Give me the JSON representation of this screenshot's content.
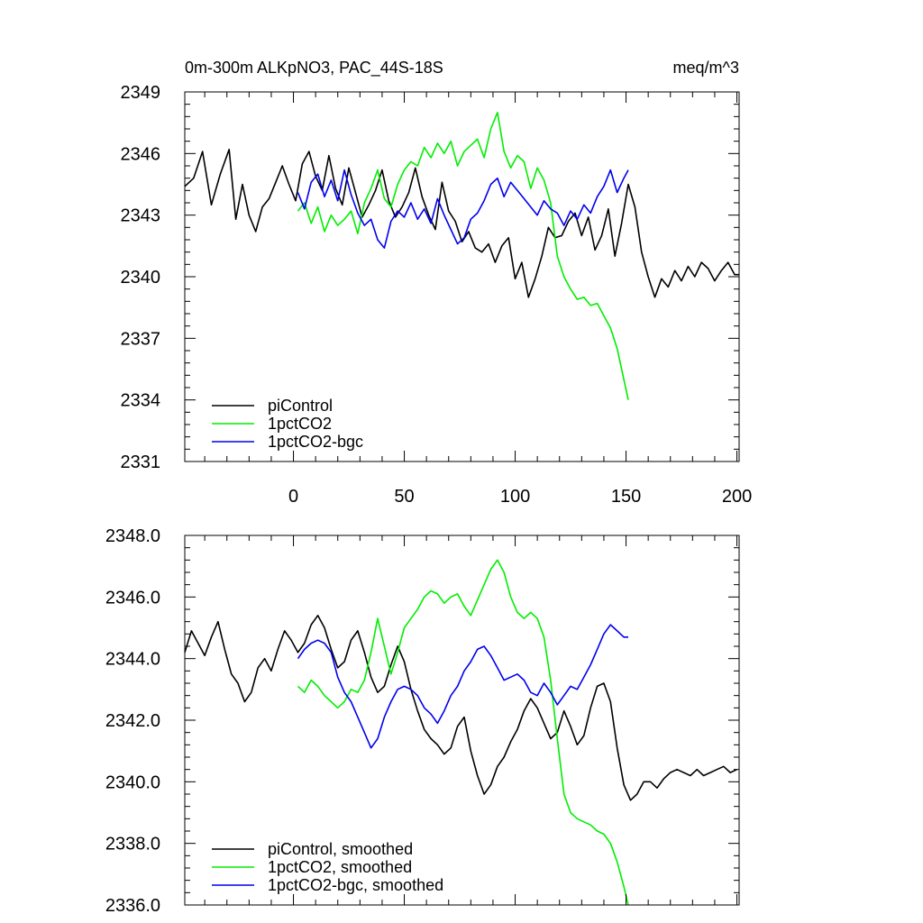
{
  "chart_data": [
    {
      "type": "line",
      "title_left": "0m-300m ALKpNO3, PAC_44S-18S",
      "title_right": "meq/m^3",
      "xlabel": "",
      "ylabel": "",
      "xlim": [
        -49,
        201
      ],
      "ylim": [
        2331,
        2349
      ],
      "x_ticks": [
        0,
        50,
        100,
        150,
        200
      ],
      "y_ticks": [
        2331,
        2334,
        2337,
        2340,
        2343,
        2346,
        2349
      ],
      "y_tick_labels": [
        "2331",
        "2334",
        "2337",
        "2340",
        "2343",
        "2346",
        "2349"
      ],
      "show_x_tick_labels": true,
      "legend_position": "bottom-left",
      "series": [
        {
          "name": "piControl",
          "color": "#000000",
          "x": [
            -49,
            -45,
            -41,
            -37,
            -33,
            -29,
            -26,
            -23,
            -20,
            -17,
            -14,
            -11,
            -8,
            -5,
            -2,
            1,
            4,
            7,
            10,
            13,
            16,
            19,
            22,
            25,
            28,
            31,
            34,
            37,
            40,
            43,
            46,
            49,
            52,
            55,
            58,
            61,
            64,
            67,
            70,
            73,
            76,
            79,
            82,
            85,
            88,
            91,
            94,
            97,
            100,
            103,
            106,
            109,
            112,
            115,
            118,
            121,
            124,
            127,
            130,
            133,
            136,
            139,
            142,
            145,
            148,
            151,
            154,
            157,
            160,
            163,
            166,
            169,
            172,
            175,
            178,
            181,
            184,
            187,
            190,
            193,
            196,
            199,
            201
          ],
          "y": [
            2344.4,
            2344.8,
            2346.1,
            2343.5,
            2345.0,
            2346.2,
            2342.8,
            2344.5,
            2343.0,
            2342.2,
            2343.4,
            2343.8,
            2344.6,
            2345.4,
            2344.5,
            2343.7,
            2345.5,
            2346.1,
            2344.9,
            2344.2,
            2345.9,
            2344.3,
            2343.5,
            2345.3,
            2344.1,
            2342.9,
            2343.5,
            2344.2,
            2345.2,
            2343.7,
            2342.9,
            2343.4,
            2344.1,
            2345.3,
            2343.9,
            2343.0,
            2342.3,
            2344.6,
            2343.2,
            2342.7,
            2341.7,
            2342.2,
            2341.4,
            2341.2,
            2341.6,
            2340.7,
            2341.5,
            2341.9,
            2339.9,
            2340.7,
            2339.0,
            2339.9,
            2341.0,
            2342.4,
            2341.9,
            2342.0,
            2342.7,
            2343.1,
            2342.0,
            2342.9,
            2341.3,
            2342.0,
            2343.3,
            2341.0,
            2342.6,
            2344.5,
            2343.4,
            2341.2,
            2340.0,
            2339.0,
            2339.9,
            2339.5,
            2340.3,
            2339.8,
            2340.5,
            2340.0,
            2340.7,
            2340.4,
            2339.8,
            2340.3,
            2340.7,
            2340.1,
            2340.1
          ]
        },
        {
          "name": "1pctCO2",
          "color": "#00ee00",
          "x": [
            2,
            5,
            8,
            11,
            14,
            17,
            20,
            23,
            26,
            29,
            32,
            35,
            38,
            41,
            44,
            47,
            50,
            53,
            56,
            59,
            62,
            65,
            68,
            71,
            74,
            77,
            80,
            83,
            86,
            89,
            92,
            95,
            98,
            101,
            104,
            107,
            110,
            113,
            116,
            119,
            122,
            125,
            128,
            131,
            134,
            137,
            140,
            143,
            146,
            149,
            151
          ],
          "y": [
            2343.2,
            2343.6,
            2342.6,
            2343.4,
            2342.2,
            2343.0,
            2342.5,
            2342.8,
            2343.2,
            2342.1,
            2343.6,
            2344.3,
            2345.2,
            2343.8,
            2343.4,
            2344.5,
            2345.2,
            2345.6,
            2345.4,
            2346.3,
            2345.8,
            2346.5,
            2346.0,
            2346.6,
            2345.4,
            2346.1,
            2346.4,
            2346.7,
            2345.8,
            2347.2,
            2348.0,
            2346.1,
            2345.3,
            2345.9,
            2345.6,
            2344.3,
            2345.3,
            2344.7,
            2343.6,
            2341.0,
            2340.0,
            2339.4,
            2338.9,
            2339.0,
            2338.6,
            2338.7,
            2338.1,
            2337.5,
            2336.5,
            2335.0,
            2334.0
          ]
        },
        {
          "name": "1pctCO2-bgc",
          "color": "#0000ee",
          "x": [
            2,
            5,
            8,
            11,
            14,
            17,
            20,
            23,
            26,
            29,
            32,
            35,
            38,
            41,
            44,
            47,
            50,
            53,
            56,
            59,
            62,
            65,
            68,
            71,
            74,
            77,
            80,
            83,
            86,
            89,
            92,
            95,
            98,
            101,
            104,
            107,
            110,
            113,
            116,
            119,
            122,
            125,
            128,
            131,
            134,
            137,
            140,
            143,
            146,
            149,
            151
          ],
          "y": [
            2344.1,
            2343.3,
            2344.6,
            2345.0,
            2343.9,
            2344.7,
            2343.7,
            2345.2,
            2344.0,
            2343.1,
            2342.5,
            2342.8,
            2341.8,
            2341.4,
            2342.7,
            2343.2,
            2342.9,
            2343.6,
            2342.8,
            2343.3,
            2342.6,
            2343.8,
            2343.0,
            2342.3,
            2341.6,
            2341.9,
            2342.8,
            2343.1,
            2343.7,
            2344.5,
            2344.8,
            2343.9,
            2344.6,
            2344.2,
            2343.8,
            2343.4,
            2343.0,
            2343.7,
            2343.3,
            2343.1,
            2342.5,
            2343.2,
            2342.8,
            2343.5,
            2343.1,
            2343.9,
            2344.4,
            2345.2,
            2344.1,
            2344.8,
            2345.2
          ]
        }
      ]
    },
    {
      "type": "line",
      "xlabel": "",
      "ylabel": "",
      "xlim": [
        -49,
        201
      ],
      "ylim": [
        2336,
        2348
      ],
      "x_ticks": [
        0,
        50,
        100,
        150,
        200
      ],
      "y_ticks": [
        2336,
        2338,
        2340,
        2342,
        2344,
        2346,
        2348
      ],
      "y_tick_labels": [
        "2336.0",
        "2338.0",
        "2340.0",
        "2342.0",
        "2344.0",
        "2346.0",
        "2348.0"
      ],
      "show_x_tick_labels": false,
      "legend_position": "bottom-left",
      "series": [
        {
          "name": "piControl, smoothed",
          "color": "#000000",
          "x": [
            -49,
            -46,
            -43,
            -40,
            -37,
            -34,
            -31,
            -28,
            -25,
            -22,
            -19,
            -16,
            -13,
            -10,
            -7,
            -4,
            -1,
            2,
            5,
            8,
            11,
            14,
            17,
            20,
            23,
            26,
            29,
            32,
            35,
            38,
            41,
            44,
            47,
            50,
            53,
            56,
            59,
            62,
            65,
            68,
            71,
            74,
            77,
            80,
            83,
            86,
            89,
            92,
            95,
            98,
            101,
            104,
            107,
            110,
            113,
            116,
            119,
            122,
            125,
            128,
            131,
            134,
            137,
            140,
            143,
            146,
            149,
            152,
            155,
            158,
            161,
            164,
            167,
            170,
            173,
            176,
            179,
            182,
            185,
            188,
            191,
            194,
            197,
            200
          ],
          "y": [
            2344.2,
            2344.9,
            2344.5,
            2344.1,
            2344.7,
            2345.2,
            2344.3,
            2343.5,
            2343.2,
            2342.6,
            2342.9,
            2343.7,
            2344.0,
            2343.6,
            2344.3,
            2344.9,
            2344.6,
            2344.2,
            2344.5,
            2345.1,
            2345.4,
            2345.0,
            2344.3,
            2343.7,
            2343.9,
            2344.6,
            2344.9,
            2344.2,
            2343.4,
            2342.9,
            2343.1,
            2343.8,
            2344.4,
            2343.9,
            2343.0,
            2342.3,
            2341.7,
            2341.4,
            2341.2,
            2340.9,
            2341.1,
            2341.8,
            2342.1,
            2341.0,
            2340.2,
            2339.6,
            2339.9,
            2340.5,
            2340.8,
            2341.3,
            2341.7,
            2342.3,
            2342.7,
            2342.4,
            2341.9,
            2341.4,
            2341.6,
            2342.3,
            2341.8,
            2341.2,
            2341.5,
            2342.4,
            2343.1,
            2343.2,
            2342.6,
            2341.1,
            2339.9,
            2339.4,
            2339.6,
            2340.0,
            2340.0,
            2339.8,
            2340.1,
            2340.3,
            2340.4,
            2340.3,
            2340.2,
            2340.4,
            2340.2,
            2340.3,
            2340.4,
            2340.5,
            2340.3,
            2340.4
          ]
        },
        {
          "name": "1pctCO2, smoothed",
          "color": "#00ee00",
          "x": [
            2,
            5,
            8,
            11,
            14,
            17,
            20,
            23,
            26,
            29,
            32,
            35,
            38,
            41,
            44,
            47,
            50,
            53,
            56,
            59,
            62,
            65,
            68,
            71,
            74,
            77,
            80,
            83,
            86,
            89,
            92,
            95,
            98,
            101,
            104,
            107,
            110,
            113,
            116,
            119,
            122,
            125,
            128,
            131,
            134,
            137,
            140,
            143,
            146,
            149,
            151
          ],
          "y": [
            2343.1,
            2342.9,
            2343.3,
            2343.1,
            2342.8,
            2342.6,
            2342.4,
            2342.6,
            2343.0,
            2342.9,
            2343.3,
            2344.2,
            2345.3,
            2344.4,
            2343.5,
            2344.2,
            2345.0,
            2345.3,
            2345.6,
            2346.0,
            2346.2,
            2346.1,
            2345.8,
            2346.0,
            2346.1,
            2345.7,
            2345.4,
            2345.9,
            2346.4,
            2346.9,
            2347.2,
            2346.8,
            2346.0,
            2345.5,
            2345.3,
            2345.5,
            2345.3,
            2344.7,
            2343.3,
            2341.4,
            2339.6,
            2339.0,
            2338.8,
            2338.7,
            2338.6,
            2338.4,
            2338.3,
            2338.0,
            2337.4,
            2336.6,
            2336.0
          ]
        },
        {
          "name": "1pctCO2-bgc, smoothed",
          "color": "#0000ee",
          "x": [
            2,
            5,
            8,
            11,
            14,
            17,
            20,
            23,
            26,
            29,
            32,
            35,
            38,
            41,
            44,
            47,
            50,
            53,
            56,
            59,
            62,
            65,
            68,
            71,
            74,
            77,
            80,
            83,
            86,
            89,
            92,
            95,
            98,
            101,
            104,
            107,
            110,
            113,
            116,
            119,
            122,
            125,
            128,
            131,
            134,
            137,
            140,
            143,
            146,
            149,
            151
          ],
          "y": [
            2344.0,
            2344.3,
            2344.5,
            2344.6,
            2344.5,
            2344.2,
            2343.4,
            2342.9,
            2342.6,
            2342.1,
            2341.6,
            2341.1,
            2341.4,
            2342.1,
            2342.6,
            2343.0,
            2343.1,
            2343.0,
            2342.8,
            2342.4,
            2342.2,
            2341.9,
            2342.3,
            2342.8,
            2343.1,
            2343.6,
            2343.9,
            2344.3,
            2344.4,
            2344.1,
            2343.7,
            2343.3,
            2343.4,
            2343.5,
            2343.3,
            2342.9,
            2342.8,
            2343.2,
            2342.9,
            2342.5,
            2342.8,
            2343.1,
            2343.0,
            2343.4,
            2343.8,
            2344.3,
            2344.8,
            2345.1,
            2344.9,
            2344.7,
            2344.7
          ]
        }
      ]
    }
  ]
}
